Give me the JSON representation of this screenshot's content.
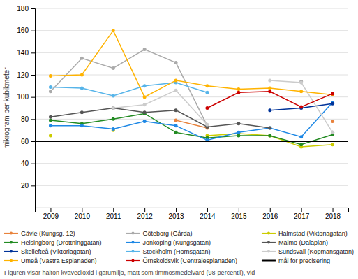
{
  "chart_data": {
    "type": "line",
    "x": [
      2009,
      2010,
      2011,
      2012,
      2013,
      2014,
      2015,
      2016,
      2017,
      2018
    ],
    "series": [
      {
        "name": "Gävle (Kungsg. 12)",
        "color": "#E8823C",
        "values": [
          null,
          null,
          null,
          null,
          79,
          72,
          null,
          null,
          null,
          78
        ]
      },
      {
        "name": "Göteborg (Gårda)",
        "color": "#AAAAAA",
        "values": [
          105,
          135,
          126,
          143,
          131,
          74,
          null,
          null,
          114,
          null
        ]
      },
      {
        "name": "Halmstad (Viktoriagatan)",
        "color": "#CCCC00",
        "values": [
          65,
          null,
          70,
          null,
          null,
          65,
          67,
          65,
          55,
          57
        ]
      },
      {
        "name": "Helsingborg (Drottninggatan)",
        "color": "#228B22",
        "values": [
          79,
          76,
          80,
          85,
          68,
          63,
          65,
          65,
          57,
          66
        ]
      },
      {
        "name": "Jönköping (Kungsgatan)",
        "color": "#1E88E5",
        "values": [
          74,
          74,
          71,
          78,
          74,
          61,
          68,
          72,
          64,
          95
        ]
      },
      {
        "name": "Malmö (Dalaplan)",
        "color": "#555555",
        "values": [
          82,
          86,
          90,
          86,
          88,
          73,
          76,
          72,
          null,
          68
        ]
      },
      {
        "name": "Skellefteå (Viktoriagatan)",
        "color": "#003399",
        "values": [
          null,
          null,
          null,
          null,
          null,
          null,
          null,
          88,
          90,
          94
        ]
      },
      {
        "name": "Stockholm (Hornsgatan)",
        "color": "#56B4E9",
        "values": [
          109,
          108,
          101,
          110,
          113,
          104,
          null,
          null,
          null,
          null
        ]
      },
      {
        "name": "Sundsvall (Köpmansgatan)",
        "color": "#CCCCCC",
        "values": [
          null,
          null,
          90,
          93,
          106,
          75,
          null,
          115,
          113,
          68
        ]
      },
      {
        "name": "Umeå (Västra Esplanaden)",
        "color": "#FFB300",
        "values": [
          119,
          120,
          160,
          100,
          115,
          110,
          107,
          108,
          105,
          102
        ]
      },
      {
        "name": "Örnsköldsvik (Centralesplanaden)",
        "color": "#CC0000",
        "values": [
          null,
          null,
          null,
          null,
          null,
          90,
          104,
          105,
          91,
          103
        ]
      }
    ],
    "reference_lines": [
      {
        "name": "mål för precisering",
        "value": 60,
        "color": "#000000"
      }
    ],
    "marker": "circle",
    "y_label": "mikrogram per kubikmeter",
    "ylim": [
      0,
      180
    ],
    "yticks": [
      {
        "value": 0,
        "label": null
      },
      20,
      40,
      60,
      80,
      100,
      120,
      140,
      160,
      180
    ],
    "xlim": [
      2008.5,
      2018.5
    ],
    "xticks": [
      2009,
      2010,
      2011,
      2012,
      2013,
      2014,
      2015,
      2016,
      2017,
      2018
    ],
    "grid": true,
    "caption": "Figuren visar halton kvävedioxid i gatumiljö, mätt som timmosmedelvärd (98-percentil), vid"
  }
}
